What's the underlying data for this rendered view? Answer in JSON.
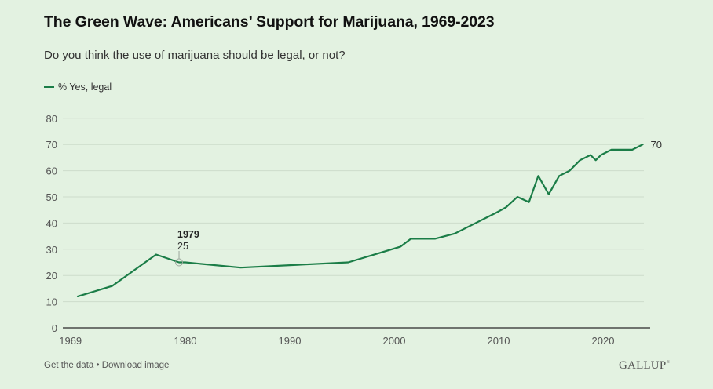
{
  "header": {
    "title": "The Green Wave: Americans’ Support for Marijuana, 1969-2023",
    "subtitle": "Do you think the use of marijuana should be legal, or not?"
  },
  "legend": {
    "label": "% Yes, legal",
    "color": "#1b7d47"
  },
  "footer": {
    "get_data": "Get the data",
    "separator": "•",
    "download": "Download image",
    "logo": "GALLUP",
    "logo_mark": "®"
  },
  "colors": {
    "background": "#e3f2e1",
    "line": "#1b7d47",
    "grid": "#cddccb",
    "axis": "#333333"
  },
  "chart_data": {
    "type": "line",
    "title": "The Green Wave: Americans’ Support for Marijuana, 1969-2023",
    "subtitle": "Do you think the use of marijuana should be legal, or not?",
    "xlabel": "",
    "ylabel": "",
    "xlim": [
      1969,
      2024.5
    ],
    "ylim": [
      0,
      80
    ],
    "x_ticks": [
      1969,
      1980,
      1990,
      2000,
      2010,
      2020
    ],
    "y_ticks": [
      0,
      10,
      20,
      30,
      40,
      50,
      60,
      70,
      80
    ],
    "grid": true,
    "legend_position": "top-left",
    "series": [
      {
        "name": "% Yes, legal",
        "x": [
          1969.7,
          1973.0,
          1977.2,
          1979.4,
          1980.0,
          1985.3,
          1995.6,
          2000.6,
          2001.6,
          2003.9,
          2005.8,
          2009.8,
          2010.7,
          2011.8,
          2012.9,
          2013.8,
          2014.8,
          2015.8,
          2016.8,
          2017.8,
          2018.8,
          2019.3,
          2019.8,
          2020.8,
          2021.8,
          2022.8,
          2023.8
        ],
        "years": [
          1969,
          1973,
          1977,
          1979,
          1980,
          1985,
          1995,
          2000,
          2001,
          2003,
          2005,
          2009,
          2010,
          2011,
          2012,
          2013,
          2014,
          2015,
          2016,
          2017,
          2018,
          2019,
          2019,
          2020,
          2021,
          2022,
          2023
        ],
        "values": [
          12,
          16,
          28,
          25,
          25,
          23,
          25,
          31,
          34,
          34,
          36,
          44,
          46,
          50,
          48,
          58,
          51,
          58,
          60,
          64,
          66,
          64,
          66,
          68,
          68,
          68,
          70
        ]
      }
    ],
    "annotations": [
      {
        "label_year": "1979",
        "label_value": "25",
        "x": 1979.4,
        "y": 25
      },
      {
        "end_label": "70",
        "x": 2023.8,
        "y": 70
      }
    ]
  }
}
